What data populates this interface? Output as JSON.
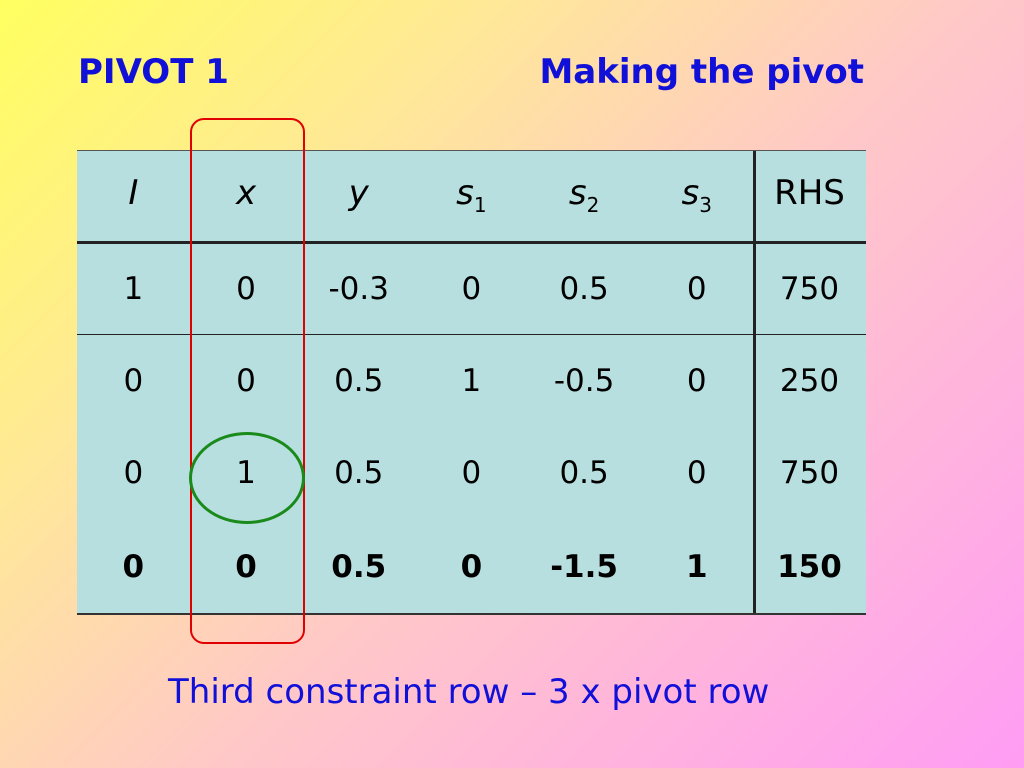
{
  "title_left": "PIVOT 1",
  "title_right": "Making the pivot",
  "table": {
    "headers": [
      {
        "base": "I",
        "sub": ""
      },
      {
        "base": "x",
        "sub": ""
      },
      {
        "base": "y",
        "sub": ""
      },
      {
        "base": "s",
        "sub": "1"
      },
      {
        "base": "s",
        "sub": "2"
      },
      {
        "base": "s",
        "sub": "3"
      },
      {
        "base": "RHS",
        "sub": ""
      }
    ],
    "rows": [
      [
        "1",
        "0",
        "-0.3",
        "0",
        "0.5",
        "0",
        "750"
      ],
      [
        "0",
        "0",
        "0.5",
        "1",
        "-0.5",
        "0",
        "250"
      ],
      [
        "0",
        "1",
        "0.5",
        "0",
        "0.5",
        "0",
        "750"
      ],
      [
        "0",
        "0",
        "0.5",
        "0",
        "-1.5",
        "1",
        "150"
      ]
    ],
    "bold_row": 3,
    "highlight_column": "x",
    "circled_cell": {
      "row": 2,
      "col": 1
    }
  },
  "footer": "Third constraint row  –  3 x pivot row",
  "colors": {
    "title": "#1010d8",
    "table_bg": "#b8dfe0",
    "column_box": "#e00000",
    "pivot_circle": "#1a8a1a"
  }
}
